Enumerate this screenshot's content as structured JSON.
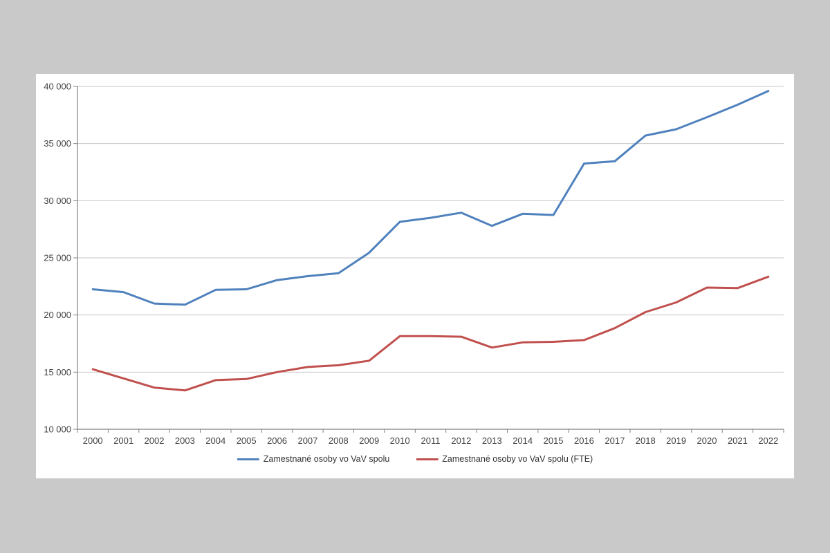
{
  "chart_data": {
    "type": "line",
    "title": "",
    "xlabel": "",
    "ylabel": "",
    "categories": [
      "2000",
      "2001",
      "2002",
      "2003",
      "2004",
      "2005",
      "2006",
      "2007",
      "2008",
      "2009",
      "2010",
      "2011",
      "2012",
      "2013",
      "2014",
      "2015",
      "2016",
      "2017",
      "2018",
      "2019",
      "2020",
      "2021",
      "2022"
    ],
    "series": [
      {
        "name": "Zamestnané osoby vo VaV spolu",
        "color": "#4F81BD",
        "values": [
          22250,
          22000,
          21000,
          20900,
          22200,
          22250,
          23050,
          23400,
          23650,
          25450,
          28150,
          28500,
          28950,
          27800,
          28850,
          28750,
          33250,
          33450,
          35700,
          36250,
          37300,
          38400,
          39600
        ]
      },
      {
        "name": "Zamestnané osoby vo VaV spolu (FTE)",
        "color": "#C0504D",
        "values": [
          15250,
          14450,
          13650,
          13400,
          14300,
          14400,
          15000,
          15450,
          15600,
          16000,
          18150,
          18150,
          18100,
          17150,
          17600,
          17650,
          17800,
          18850,
          20250,
          21100,
          22400,
          22350,
          23350
        ]
      }
    ],
    "ylim": [
      10000,
      40000
    ],
    "y_ticks": [
      {
        "value": 40000,
        "label": "40 000"
      },
      {
        "value": 35000,
        "label": "35 000"
      },
      {
        "value": 30000,
        "label": "30 000"
      },
      {
        "value": 25000,
        "label": "25 000"
      },
      {
        "value": 20000,
        "label": "20 000"
      },
      {
        "value": 15000,
        "label": "15 000"
      },
      {
        "value": 10000,
        "label": "10 000"
      }
    ],
    "grid": "horizontal gridlines on, white plot background",
    "legend_position": "bottom",
    "colors": {
      "axis": "#808080",
      "gridline": "#c6c6c6",
      "tick_label": "#404040",
      "page_background": "#c9c9c9",
      "plot_background": "#ffffff"
    }
  }
}
